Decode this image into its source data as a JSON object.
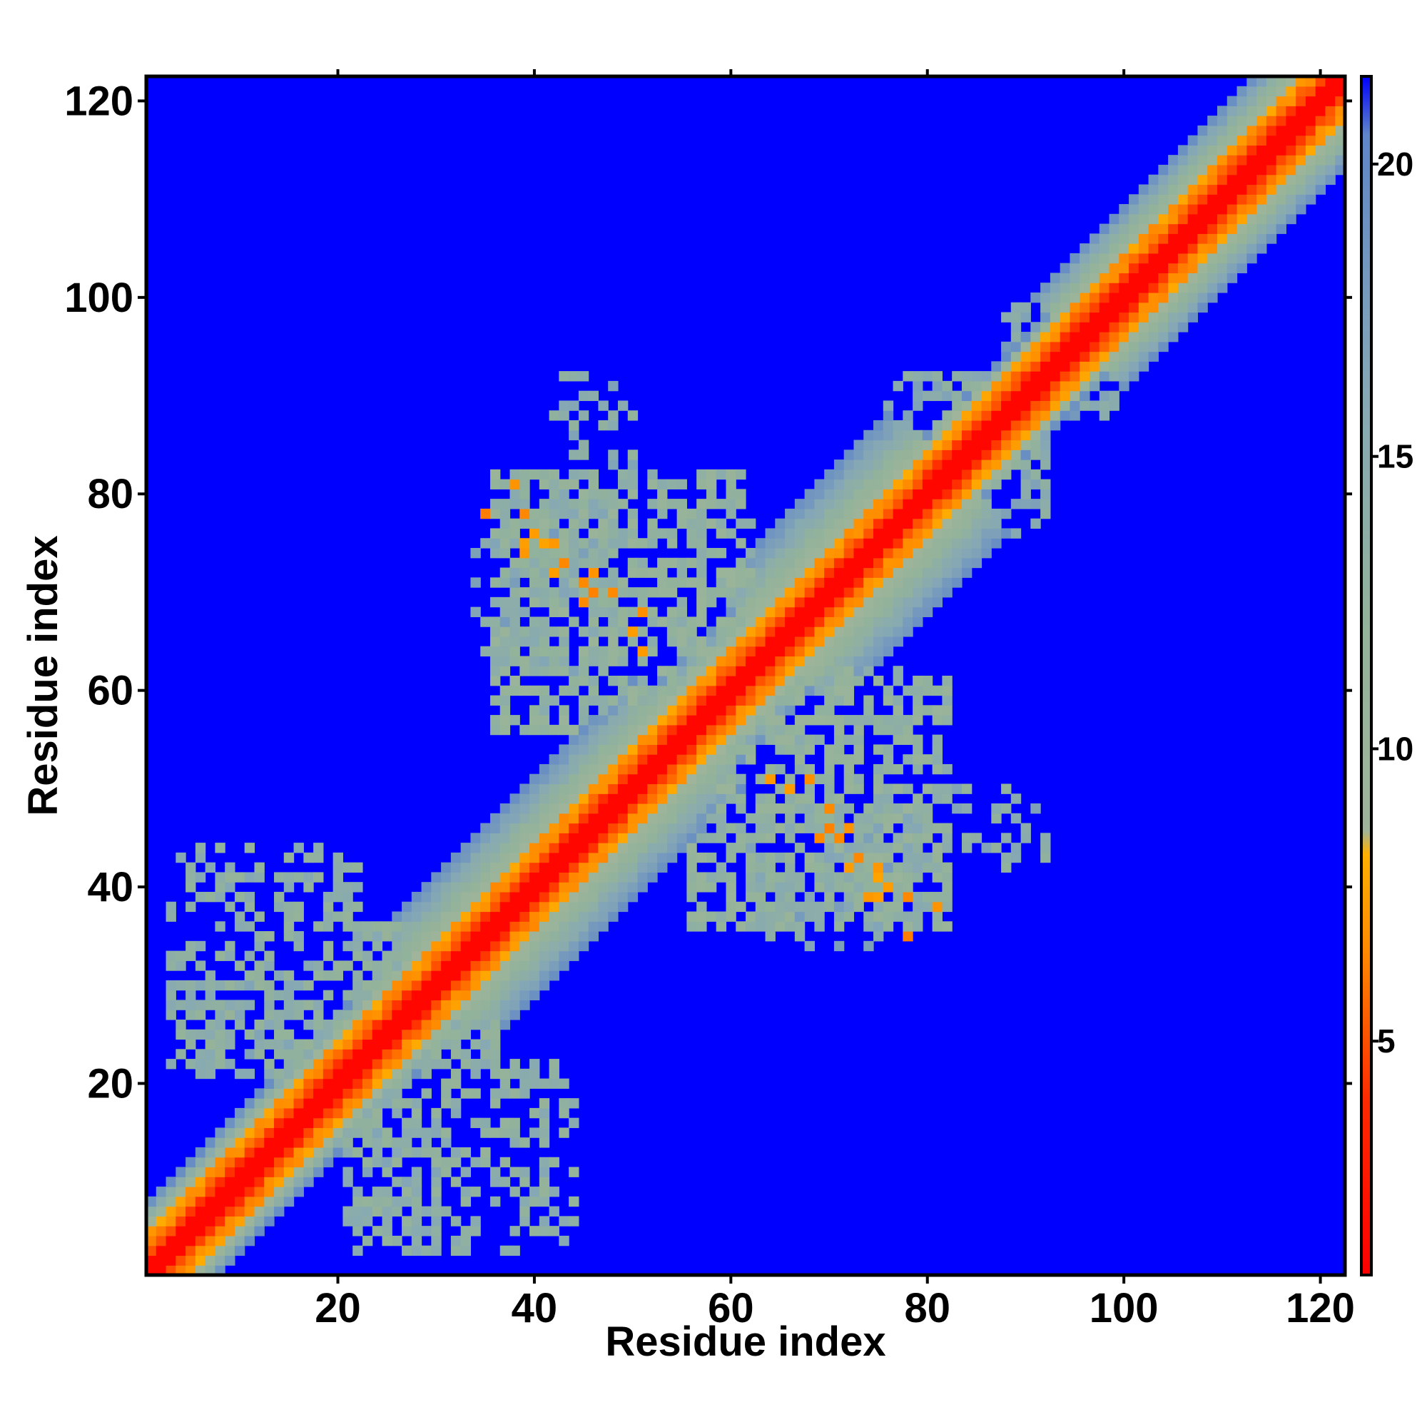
{
  "chart_data": {
    "type": "heatmap",
    "title": "",
    "xlabel": "Residue index",
    "ylabel": "Residue index",
    "n_residues": 122,
    "xlim": [
      1,
      122
    ],
    "ylim": [
      1,
      122
    ],
    "x_ticks": [
      20,
      40,
      60,
      80,
      100,
      120
    ],
    "y_ticks": [
      20,
      40,
      60,
      80,
      100,
      120
    ],
    "colorbar": {
      "ticks": [
        5,
        10,
        15,
        20
      ],
      "range": [
        1,
        21.5
      ],
      "stops": [
        {
          "value": 1,
          "color": "#ff0000"
        },
        {
          "value": 4,
          "color": "#ff2a00"
        },
        {
          "value": 6.5,
          "color": "#ff8800"
        },
        {
          "value": 8.2,
          "color": "#ffb000"
        },
        {
          "value": 8.6,
          "color": "#9fb49a"
        },
        {
          "value": 12,
          "color": "#93b39a"
        },
        {
          "value": 16,
          "color": "#86a8b5"
        },
        {
          "value": 20.5,
          "color": "#5f86c8"
        },
        {
          "value": 21.5,
          "color": "#0000ff"
        }
      ]
    },
    "background_color": "#0000ff",
    "diagonal_band": {
      "segments": [
        {
          "from": 1,
          "to": 30,
          "halfwidth": 7
        },
        {
          "from": 30,
          "to": 56,
          "halfwidth": 11
        },
        {
          "from": 56,
          "to": 64,
          "halfwidth": 8
        },
        {
          "from": 64,
          "to": 82,
          "halfwidth": 12
        },
        {
          "from": 82,
          "to": 95,
          "halfwidth": 6
        },
        {
          "from": 95,
          "to": 122,
          "halfwidth": 9
        }
      ]
    },
    "contact_regions": [
      {
        "i_range": [
          3,
          22
        ],
        "j_range": [
          21,
          44
        ],
        "approx_distance": 11,
        "density": 0.45
      },
      {
        "i_range": [
          4,
          22
        ],
        "j_range": [
          22,
          30
        ],
        "approx_distance": 12,
        "density": 0.5
      },
      {
        "i_range": [
          21,
          34
        ],
        "j_range": [
          22,
          36
        ],
        "approx_distance": 11,
        "density": 0.55
      },
      {
        "i_range": [
          36,
          62
        ],
        "j_range": [
          56,
          82
        ],
        "approx_distance": 10,
        "density": 0.55
      },
      {
        "i_range": [
          37,
          48
        ],
        "j_range": [
          62,
          80
        ],
        "approx_distance": 12,
        "density": 0.5
      },
      {
        "i_range": [
          42,
          50
        ],
        "j_range": [
          82,
          92
        ],
        "approx_distance": 12,
        "density": 0.35
      },
      {
        "i_range": [
          34,
          44
        ],
        "j_range": [
          64,
          76
        ],
        "approx_distance": 13,
        "density": 0.3
      },
      {
        "i_range": [
          80,
          92
        ],
        "j_range": [
          76,
          90
        ],
        "approx_distance": 12,
        "density": 0.35
      },
      {
        "i_range": [
          89,
          100
        ],
        "j_range": [
          88,
          99
        ],
        "approx_distance": 13,
        "density": 0.4
      }
    ],
    "close_contacts": [
      [
        39,
        78
      ],
      [
        39,
        75
      ],
      [
        41,
        75
      ],
      [
        42,
        72
      ],
      [
        46,
        72
      ],
      [
        45,
        69
      ],
      [
        48,
        70
      ],
      [
        51,
        64
      ],
      [
        35,
        78
      ],
      [
        38,
        81
      ],
      [
        70,
        46
      ],
      [
        71,
        45
      ],
      [
        73,
        43
      ],
      [
        75,
        42
      ],
      [
        76,
        40
      ],
      [
        78,
        39
      ],
      [
        78,
        35
      ],
      [
        74,
        39
      ],
      [
        66,
        50
      ],
      [
        68,
        51
      ]
    ]
  }
}
